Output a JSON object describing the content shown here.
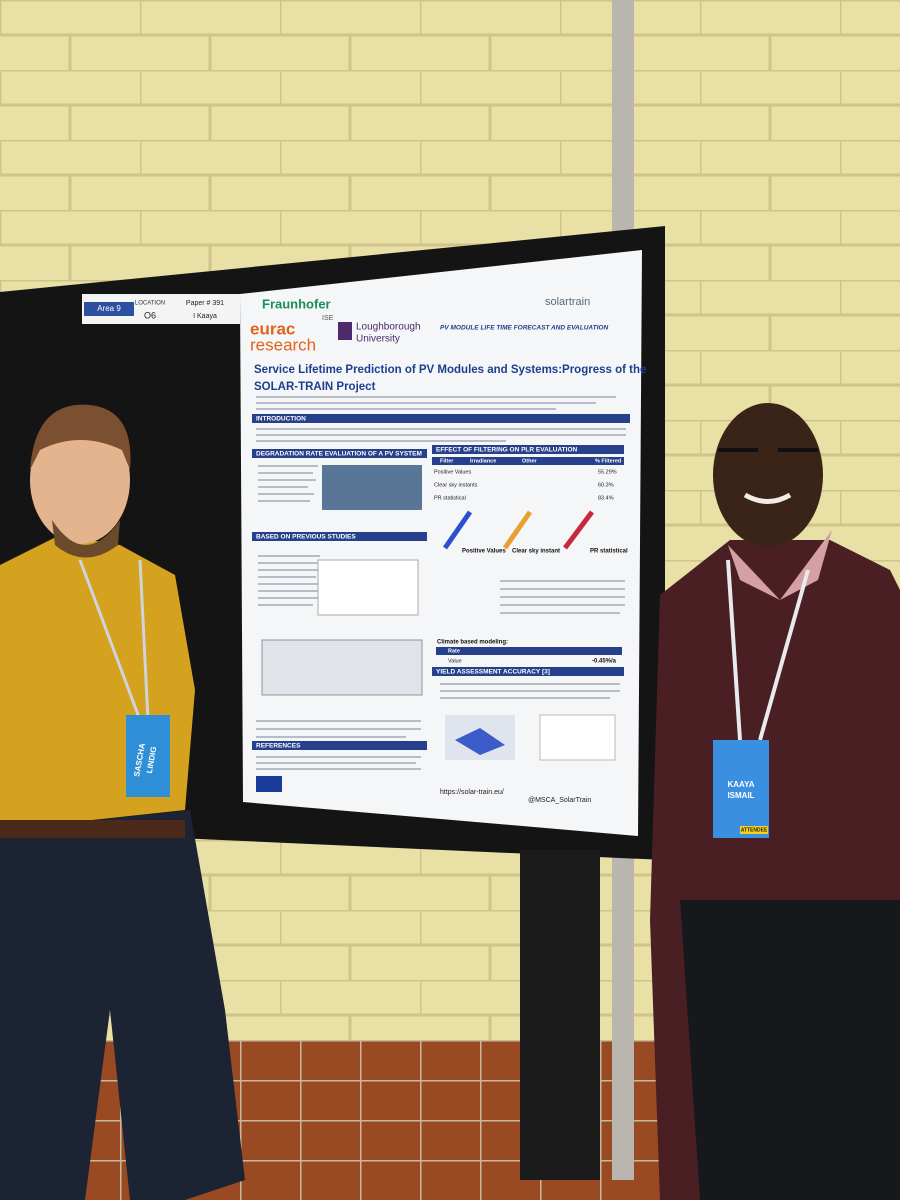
{
  "board_label": {
    "area": "Area 9",
    "location_label": "LOCATION",
    "location": "O6",
    "paper": "Paper # 391",
    "presenter": "I Kaaya"
  },
  "poster": {
    "logos": {
      "fraunhofer": "Fraunhofer",
      "ise": "ISE",
      "eurac": "eurac",
      "research": "research",
      "loughborough": "Loughborough",
      "university": "University",
      "solartrain": "solartrain"
    },
    "tagline": "PV MODULE LIFE TIME FORECAST AND EVALUATION",
    "title": [
      "Service Lifetime Prediction of PV Modules and Systems:Progress of the",
      "SOLAR-TRAIN Project"
    ],
    "sections": [
      "INTRODUCTION",
      "DEGRADATION RATE EVALUATION OF A PV SYSTEM",
      "BASED ON PREVIOUS STUDIES",
      "EFFECT OF FILTERING ON PLR EVALUATION",
      "YIELD ASSESSMENT ACCURACY [3]",
      "REFERENCES"
    ],
    "filter_table": {
      "headers": [
        "Filter",
        "Irradiance",
        "Other",
        "% Filtered"
      ],
      "rows": [
        [
          "Positive Values",
          "55.29%"
        ],
        [
          "Clear sky instants",
          "60.3%"
        ],
        [
          "PR statistical",
          "83.4%"
        ]
      ]
    },
    "figure_labels": [
      "Positive Values",
      "Clear sky instant",
      "PR statistical"
    ],
    "climate_heading": "Climate based modeling:",
    "climate_table": {
      "headers": [
        "Rate",
        "Value"
      ],
      "result": "-0.45%/a"
    },
    "website": "https://solar-train.eu/",
    "twitter": "@MSCA_SolarTrain"
  },
  "badges": [
    {
      "name": [
        "SASCHA",
        "LINDIG"
      ]
    },
    {
      "name": [
        "KAAYA",
        "ISMAIL"
      ],
      "role": "ATTENDEE"
    }
  ]
}
